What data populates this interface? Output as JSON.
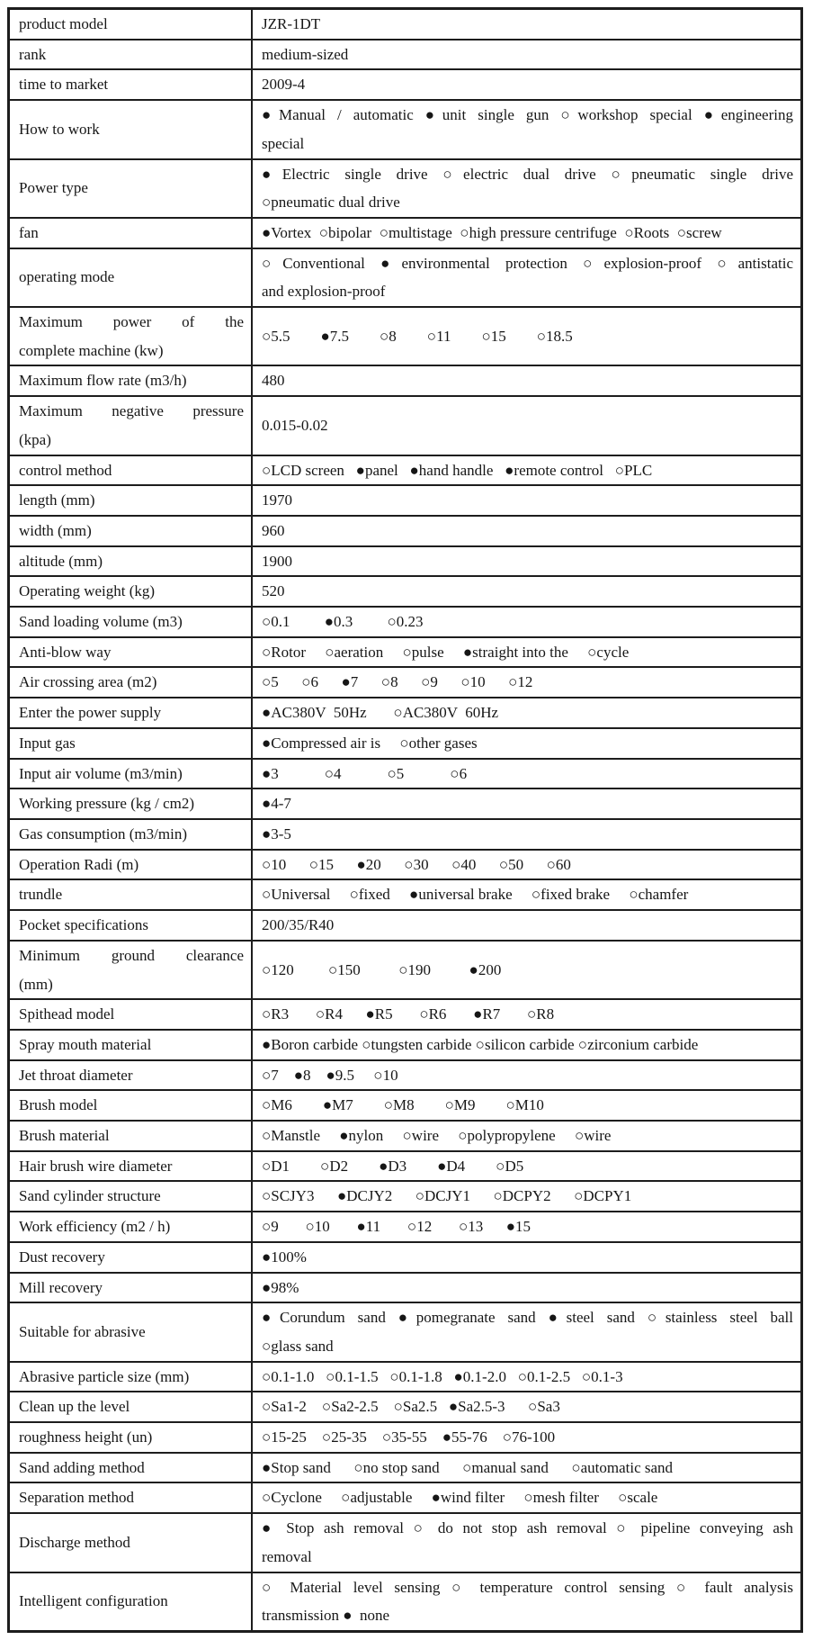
{
  "page": {
    "background_color": "#ffffff",
    "border_color": "#1d1d1d",
    "text_color": "#161616",
    "legend": {
      "filled_mark": "●",
      "hollow_mark": "○",
      "filled_meaning": "selected option",
      "hollow_meaning": "unselected option"
    }
  },
  "table": {
    "rows": [
      {
        "label": [
          {
            "t": "product model"
          }
        ],
        "value": [
          {
            "t": "JZR-1DT"
          }
        ]
      },
      {
        "label": [
          {
            "t": "rank"
          }
        ],
        "value": [
          {
            "t": "medium-sized"
          }
        ]
      },
      {
        "label": [
          {
            "t": "time to market"
          }
        ],
        "value": [
          {
            "t": "2009-4"
          }
        ]
      },
      {
        "label": [
          {
            "t": "How to work"
          }
        ],
        "value": [
          {
            "t": "●Manual / automatic ●unit single gun ○workshop special ●engineering",
            "j": true
          },
          {
            "t": "special"
          }
        ]
      },
      {
        "label": [
          {
            "t": "Power type"
          }
        ],
        "value": [
          {
            "t": "●Electric single drive ○electric dual drive ○pneumatic single drive",
            "j": true
          },
          {
            "t": "○pneumatic dual drive"
          }
        ]
      },
      {
        "label": [
          {
            "t": "fan"
          }
        ],
        "value": [
          {
            "t": "●Vortex  ○bipolar  ○multistage  ○high pressure centrifuge  ○Roots  ○screw"
          }
        ]
      },
      {
        "label": [
          {
            "t": "operating mode"
          }
        ],
        "value": [
          {
            "t": "○Conventional ●environmental protection ○explosion-proof ○antistatic",
            "j": true
          },
          {
            "t": "and explosion-proof"
          }
        ]
      },
      {
        "label": [
          {
            "t": "Maximum power of the",
            "j": true
          },
          {
            "t": "complete machine (kw)"
          }
        ],
        "value": [
          {
            "t": "○5.5        ●7.5        ○8        ○11        ○15        ○18.5"
          }
        ]
      },
      {
        "label": [
          {
            "t": "Maximum flow rate (m3/h)"
          }
        ],
        "value": [
          {
            "t": "480"
          }
        ]
      },
      {
        "label": [
          {
            "t": "Maximum negative pressure",
            "j": true
          },
          {
            "t": "(kpa)"
          }
        ],
        "value": [
          {
            "t": "0.015-0.02"
          }
        ]
      },
      {
        "label": [
          {
            "t": "control method"
          }
        ],
        "value": [
          {
            "t": "○LCD screen   ●panel   ●hand handle   ●remote control   ○PLC"
          }
        ]
      },
      {
        "label": [
          {
            "t": "length (mm)"
          }
        ],
        "value": [
          {
            "t": "1970"
          }
        ]
      },
      {
        "label": [
          {
            "t": "width (mm)"
          }
        ],
        "value": [
          {
            "t": "960"
          }
        ]
      },
      {
        "label": [
          {
            "t": "altitude (mm)"
          }
        ],
        "value": [
          {
            "t": "1900"
          }
        ]
      },
      {
        "label": [
          {
            "t": "Operating weight (kg)"
          }
        ],
        "value": [
          {
            "t": "520"
          }
        ]
      },
      {
        "label": [
          {
            "t": "Sand loading volume (m3)"
          }
        ],
        "value": [
          {
            "t": "○0.1         ●0.3         ○0.23"
          }
        ]
      },
      {
        "label": [
          {
            "t": "Anti-blow way"
          }
        ],
        "value": [
          {
            "t": "○Rotor     ○aeration     ○pulse     ●straight into the     ○cycle"
          }
        ]
      },
      {
        "label": [
          {
            "t": "Air crossing area (m2)"
          }
        ],
        "value": [
          {
            "t": "○5      ○6      ●7      ○8      ○9      ○10      ○12"
          }
        ]
      },
      {
        "label": [
          {
            "t": "Enter the power supply"
          }
        ],
        "value": [
          {
            "t": "●AC380V  50Hz       ○AC380V  60Hz"
          }
        ]
      },
      {
        "label": [
          {
            "t": "Input gas"
          }
        ],
        "value": [
          {
            "t": "●Compressed air is     ○other gases"
          }
        ]
      },
      {
        "label": [
          {
            "t": "Input air volume (m3/min)"
          }
        ],
        "value": [
          {
            "t": "●3            ○4            ○5            ○6"
          }
        ]
      },
      {
        "label": [
          {
            "t": "Working pressure (kg / cm2)"
          }
        ],
        "value": [
          {
            "t": "●4-7"
          }
        ]
      },
      {
        "label": [
          {
            "t": "Gas consumption (m3/min)"
          }
        ],
        "value": [
          {
            "t": "●3-5"
          }
        ]
      },
      {
        "label": [
          {
            "t": "Operation Radi (m)"
          }
        ],
        "value": [
          {
            "t": "○10      ○15      ●20      ○30      ○40      ○50      ○60"
          }
        ]
      },
      {
        "label": [
          {
            "t": "trundle"
          }
        ],
        "value": [
          {
            "t": "○Universal     ○fixed     ●universal brake     ○fixed brake     ○chamfer"
          }
        ]
      },
      {
        "label": [
          {
            "t": "Pocket specifications"
          }
        ],
        "value": [
          {
            "t": "200/35/R40"
          }
        ]
      },
      {
        "label": [
          {
            "t": "Minimum ground clearance",
            "j": true
          },
          {
            "t": "(mm)"
          }
        ],
        "value": [
          {
            "t": "○120         ○150          ○190          ●200"
          }
        ]
      },
      {
        "label": [
          {
            "t": "Spithead model"
          }
        ],
        "value": [
          {
            "t": "○R3       ○R4      ●R5       ○R6       ●R7       ○R8"
          }
        ]
      },
      {
        "label": [
          {
            "t": "Spray mouth material"
          }
        ],
        "value": [
          {
            "t": "●Boron carbide ○tungsten carbide ○silicon carbide ○zirconium carbide"
          }
        ]
      },
      {
        "label": [
          {
            "t": "Jet throat diameter"
          }
        ],
        "value": [
          {
            "t": "○7    ●8    ●9.5     ○10"
          }
        ]
      },
      {
        "label": [
          {
            "t": "Brush model"
          }
        ],
        "value": [
          {
            "t": "○M6        ●M7        ○M8        ○M9        ○M10"
          }
        ]
      },
      {
        "label": [
          {
            "t": "Brush material"
          }
        ],
        "value": [
          {
            "t": "○Manstle     ●nylon     ○wire     ○polypropylene     ○wire"
          }
        ]
      },
      {
        "label": [
          {
            "t": "Hair brush wire diameter"
          }
        ],
        "value": [
          {
            "t": "○D1        ○D2        ●D3        ●D4        ○D5"
          }
        ]
      },
      {
        "label": [
          {
            "t": "Sand cylinder structure"
          }
        ],
        "value": [
          {
            "t": "○SCJY3      ●DCJY2      ○DCJY1      ○DCPY2      ○DCPY1"
          }
        ]
      },
      {
        "label": [
          {
            "t": "Work efficiency (m2 / h)"
          }
        ],
        "value": [
          {
            "t": "○9       ○10       ●11       ○12       ○13      ●15"
          }
        ]
      },
      {
        "label": [
          {
            "t": "Dust recovery"
          }
        ],
        "value": [
          {
            "t": "●100%"
          }
        ]
      },
      {
        "label": [
          {
            "t": "Mill recovery"
          }
        ],
        "value": [
          {
            "t": "●98%"
          }
        ]
      },
      {
        "label": [
          {
            "t": "Suitable for abrasive"
          }
        ],
        "value": [
          {
            "t": "●Corundum sand ●pomegranate sand ●steel sand ○stainless steel ball",
            "j": true
          },
          {
            "t": "○glass sand"
          }
        ]
      },
      {
        "label": [
          {
            "t": "Abrasive particle size (mm)"
          }
        ],
        "value": [
          {
            "t": "○0.1-1.0   ○0.1-1.5   ○0.1-1.8   ●0.1-2.0   ○0.1-2.5   ○0.1-3"
          }
        ]
      },
      {
        "label": [
          {
            "t": "Clean up the level"
          }
        ],
        "value": [
          {
            "t": "○Sa1-2    ○Sa2-2.5    ○Sa2.5   ●Sa2.5-3      ○Sa3"
          }
        ]
      },
      {
        "label": [
          {
            "t": "roughness height (un)"
          }
        ],
        "value": [
          {
            "t": "○15-25    ○25-35    ○35-55    ●55-76    ○76-100"
          }
        ]
      },
      {
        "label": [
          {
            "t": "Sand adding method"
          }
        ],
        "value": [
          {
            "t": "●Stop sand      ○no stop sand      ○manual sand      ○automatic sand"
          }
        ]
      },
      {
        "label": [
          {
            "t": "Separation method"
          }
        ],
        "value": [
          {
            "t": "○Cyclone     ○adjustable     ●wind filter     ○mesh filter     ○scale"
          }
        ]
      },
      {
        "label": [
          {
            "t": "Discharge method"
          }
        ],
        "value": [
          {
            "t": "● Stop ash removal ○ do not stop ash removal ○ pipeline conveying ash",
            "j": true
          },
          {
            "t": "removal"
          }
        ]
      },
      {
        "label": [
          {
            "t": "Intelligent configuration"
          }
        ],
        "value": [
          {
            "t": "○ Material level sensing ○ temperature control sensing ○ fault analysis",
            "j": true
          },
          {
            "t": "transmission ●  none"
          }
        ]
      }
    ]
  }
}
